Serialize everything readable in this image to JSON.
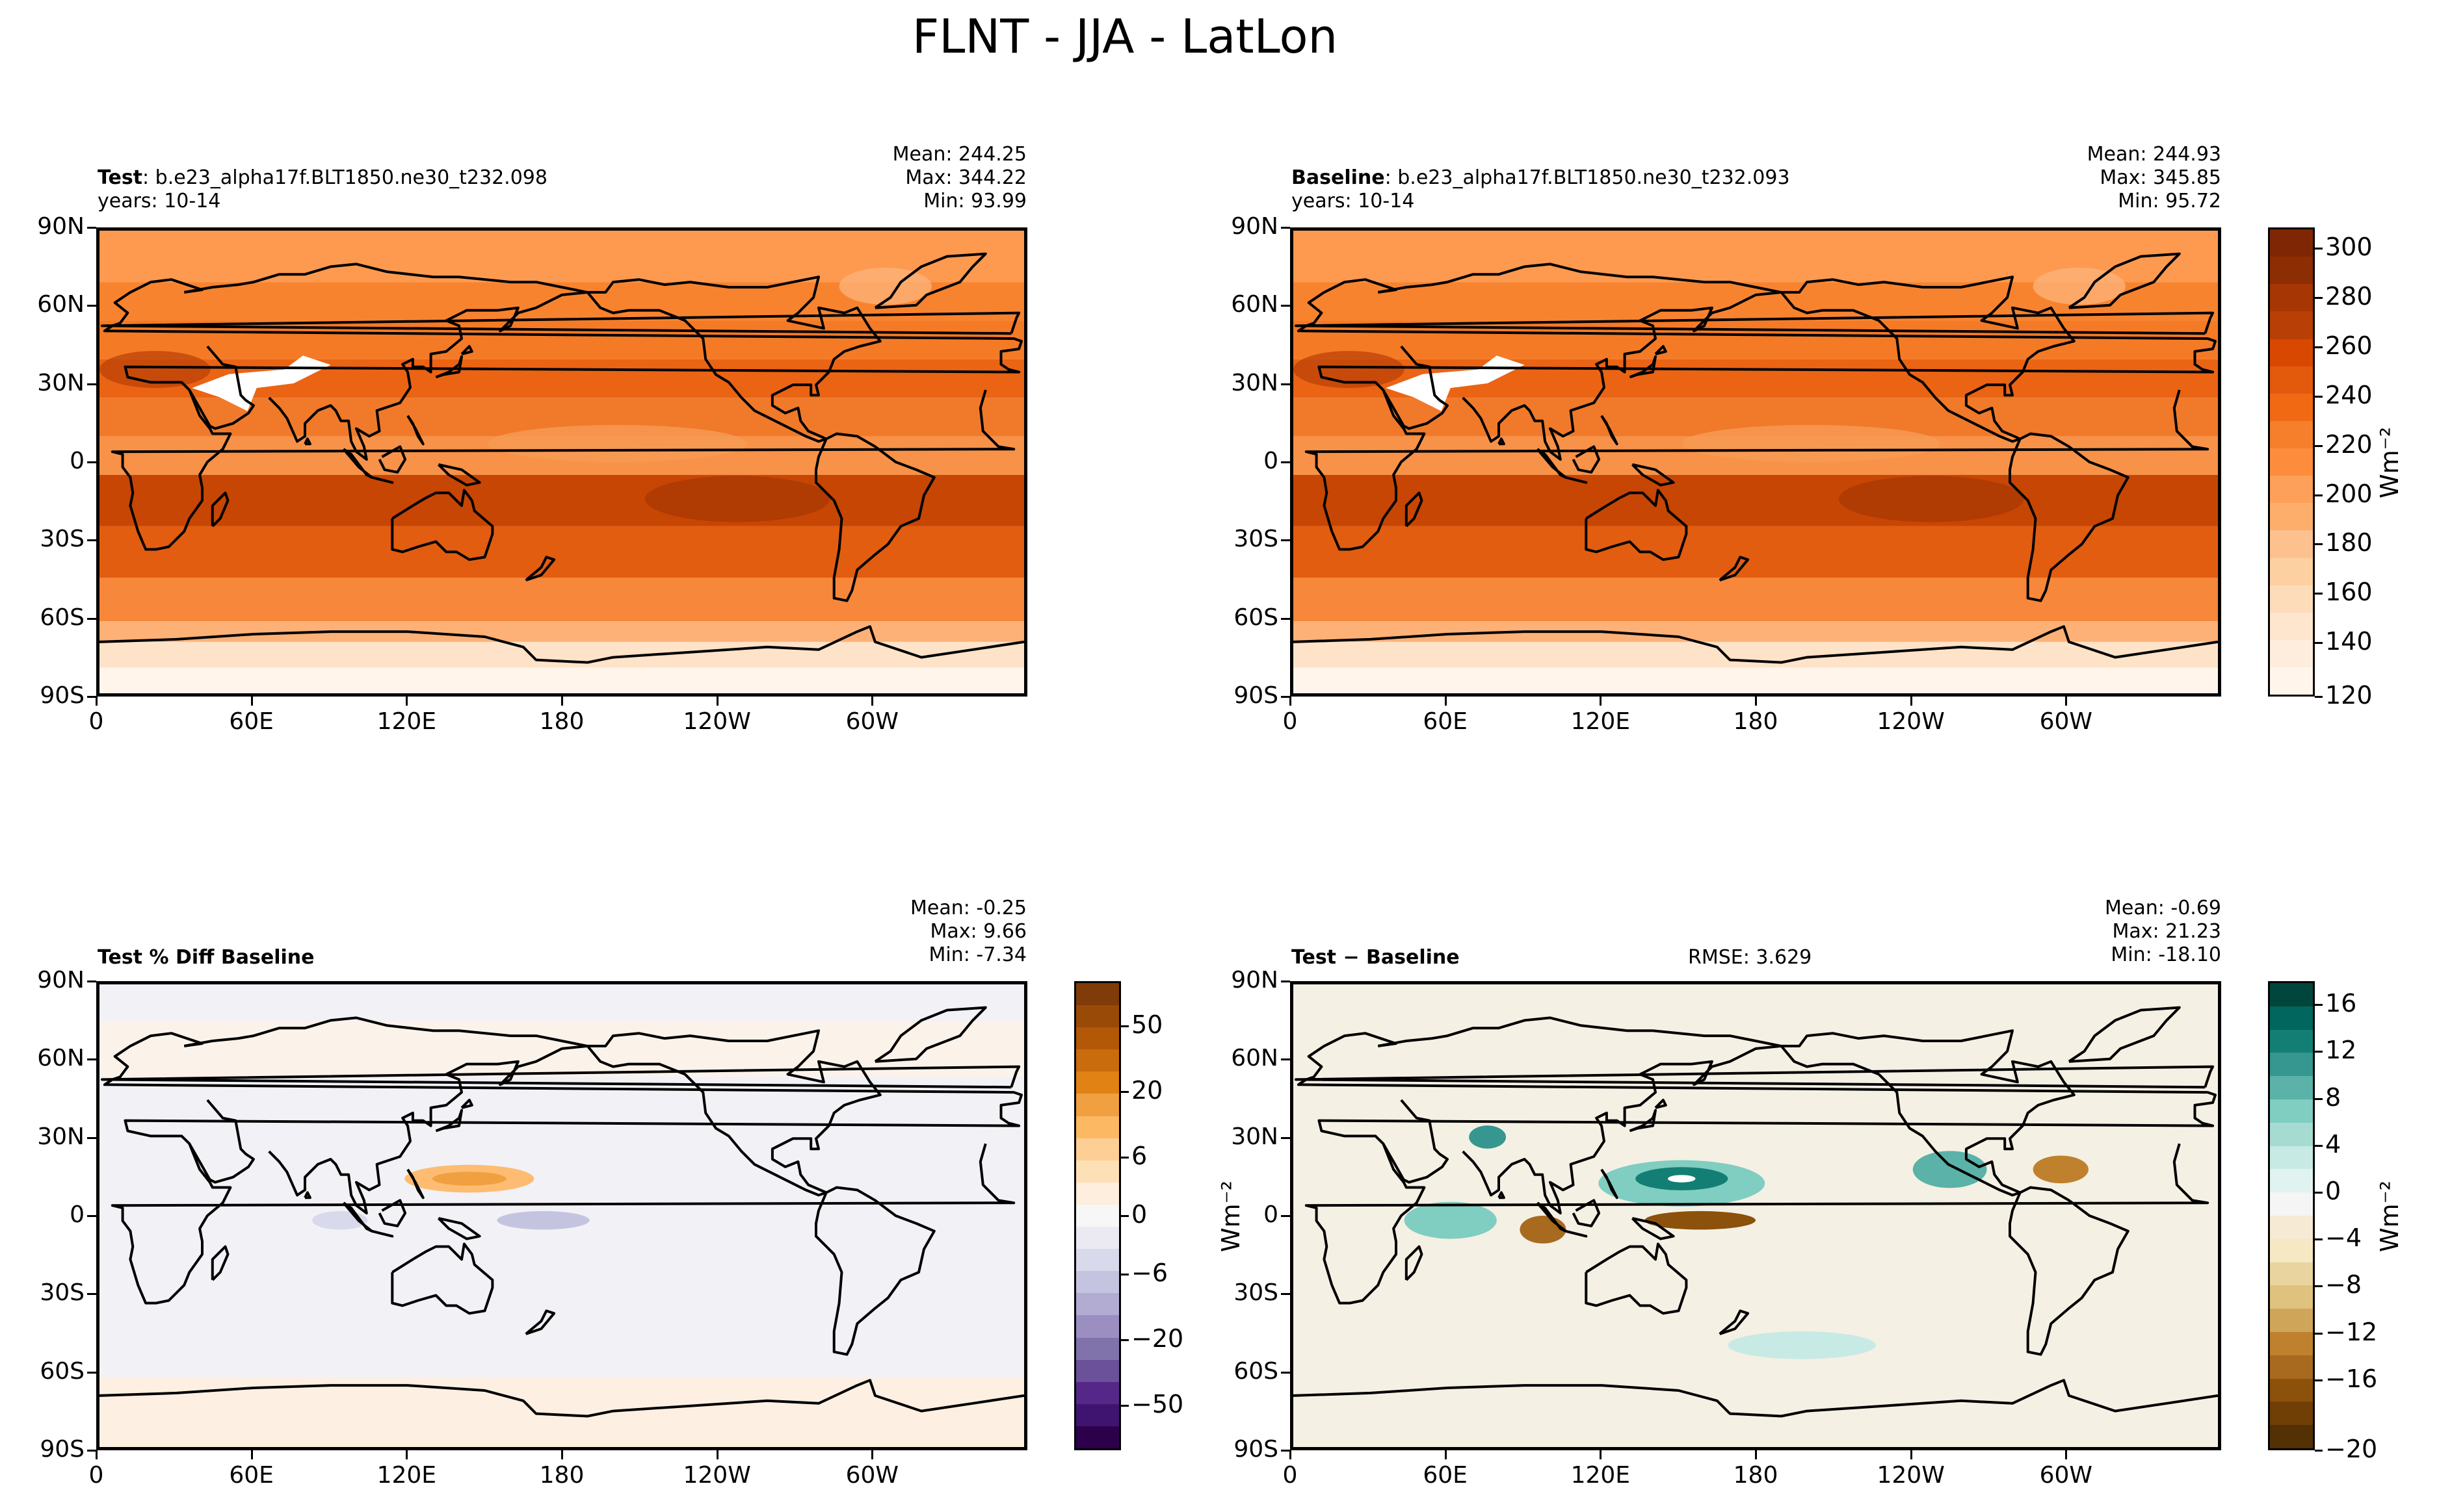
{
  "title": "FLNT - JJA - LatLon",
  "lat_ticks": [
    "90N",
    "60N",
    "30N",
    "0",
    "30S",
    "60S",
    "90S"
  ],
  "lon_ticks": [
    "0",
    "60E",
    "120E",
    "180",
    "120W",
    "60W"
  ],
  "panels": {
    "test": {
      "label_bold": "Test",
      "label_rest": ": b.e23_alpha17f.BLT1850.ne30_t232.098",
      "years": "years: 10-14",
      "mean": "Mean: 244.25",
      "max": "Max: 344.22",
      "min": "Min: 93.99"
    },
    "baseline": {
      "label_bold": "Baseline",
      "label_rest": ": b.e23_alpha17f.BLT1850.ne30_t232.093",
      "years": "years: 10-14",
      "mean": "Mean: 244.93",
      "max": "Max: 345.85",
      "min": "Min: 95.72"
    },
    "pctdiff": {
      "label_bold": "Test % Diff Baseline",
      "mean": "Mean: -0.25",
      "max": "Max:  9.66",
      "min": "Min: -7.34"
    },
    "diff": {
      "label_bold": "Test − Baseline",
      "rmse": "RMSE: 3.629",
      "mean": "Mean: -0.69",
      "max": "Max: 21.23",
      "min": "Min: -18.10"
    }
  },
  "colorbars": {
    "main": {
      "ticks": [
        "300",
        "280",
        "260",
        "240",
        "220",
        "200",
        "180",
        "160",
        "140",
        "120"
      ],
      "unit": "Wm⁻²",
      "colors": [
        "#7f2704",
        "#8c2d04",
        "#a63603",
        "#b83f05",
        "#d94801",
        "#e35a0d",
        "#f16913",
        "#f67f2c",
        "#fd8d3c",
        "#fda05a",
        "#fdae6b",
        "#fdc18f",
        "#fdd0a2",
        "#fddcba",
        "#fee6ce",
        "#feeddc",
        "#fff5eb"
      ]
    },
    "pct": {
      "ticks": [
        "50",
        "20",
        "6",
        "0",
        "−6",
        "−20",
        "−50"
      ],
      "unit": "",
      "colors": [
        "#7f3b08",
        "#9a4a07",
        "#b35806",
        "#c96c0d",
        "#e08214",
        "#f0a040",
        "#fdb863",
        "#fdcf95",
        "#fee0b6",
        "#fdeedd",
        "#f7f7f7",
        "#ebeaf3",
        "#d8daeb",
        "#c5c4e0",
        "#b2abd2",
        "#9a8fc0",
        "#8073ac",
        "#6a519a",
        "#542788",
        "#3f1470",
        "#2d004b"
      ]
    },
    "diff": {
      "ticks": [
        "16",
        "12",
        "8",
        "4",
        "0",
        "−4",
        "−8",
        "−12",
        "−16",
        "−20"
      ],
      "unit": "Wm⁻²",
      "colors": [
        "#01463d",
        "#01665e",
        "#137e74",
        "#35978f",
        "#5ab2a8",
        "#80cdc1",
        "#a6dbd2",
        "#c7eae5",
        "#e0f3f0",
        "#f5f5f5",
        "#f6ead4",
        "#f6e8c3",
        "#e9d39e",
        "#dfc27d",
        "#cfa55a",
        "#bf812d",
        "#a86a1f",
        "#8c510a",
        "#6f3f06",
        "#543005"
      ]
    }
  }
}
